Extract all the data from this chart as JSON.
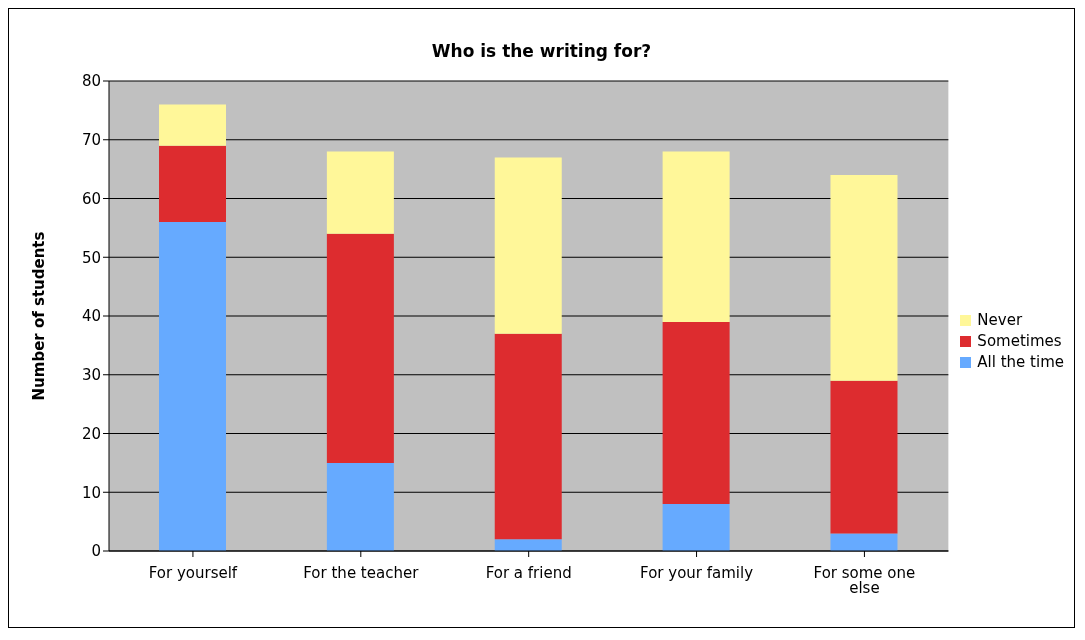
{
  "chart_data": {
    "type": "bar",
    "title": "Who is the writing for?",
    "ylabel": "Number of students",
    "categories": [
      "For yourself",
      "For the teacher",
      "For a friend",
      "For your family",
      "For some one else"
    ],
    "stacked": true,
    "series": [
      {
        "name": "All the time",
        "color": "#66aaff",
        "values": [
          56,
          15,
          2,
          8,
          3
        ]
      },
      {
        "name": "Sometimes",
        "color": "#dd2c2f",
        "values": [
          13,
          39,
          35,
          31,
          26
        ]
      },
      {
        "name": "Never",
        "color": "#fff799",
        "values": [
          7,
          14,
          30,
          29,
          35
        ]
      }
    ],
    "ylim": [
      0,
      80
    ],
    "yticks": [
      0,
      10,
      20,
      30,
      40,
      50,
      60,
      70,
      80
    ],
    "grid": "y",
    "legend": "right"
  }
}
